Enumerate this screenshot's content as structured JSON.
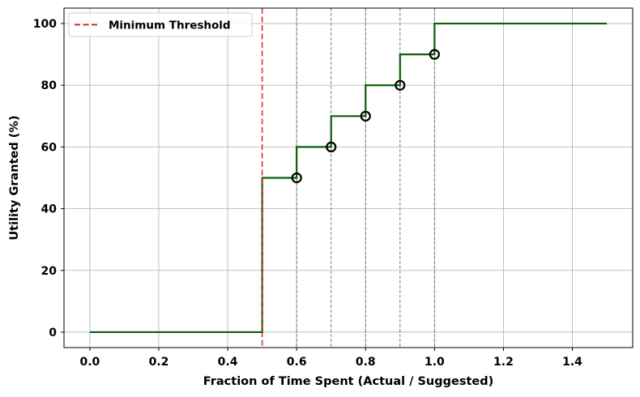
{
  "chart_data": {
    "type": "line",
    "title": "",
    "xlabel": "Fraction of Time Spent (Actual / Suggested)",
    "ylabel": "Utility Granted (%)",
    "xlim": [
      -0.075,
      1.575
    ],
    "ylim": [
      -5,
      105
    ],
    "xticks": [
      0.0,
      0.2,
      0.4,
      0.6,
      0.8,
      1.0,
      1.2,
      1.4
    ],
    "xtick_labels": [
      "0.0",
      "0.2",
      "0.4",
      "0.6",
      "0.8",
      "1.0",
      "1.2",
      "1.4"
    ],
    "yticks": [
      0,
      20,
      40,
      60,
      80,
      100
    ],
    "ytick_labels": [
      "0",
      "20",
      "40",
      "60",
      "80",
      "100"
    ],
    "grid": true,
    "legend_position": "top-left",
    "step_line": {
      "name": "",
      "color": "#0b5e0b",
      "points": [
        [
          0.0,
          0
        ],
        [
          0.5,
          0
        ],
        [
          0.5,
          50
        ],
        [
          0.6,
          50
        ],
        [
          0.6,
          60
        ],
        [
          0.7,
          60
        ],
        [
          0.7,
          70
        ],
        [
          0.8,
          70
        ],
        [
          0.8,
          80
        ],
        [
          0.9,
          80
        ],
        [
          0.9,
          90
        ],
        [
          1.0,
          90
        ],
        [
          1.0,
          100
        ],
        [
          1.5,
          100
        ]
      ]
    },
    "markers": {
      "color": "#000000",
      "points": [
        [
          0.6,
          50
        ],
        [
          0.7,
          60
        ],
        [
          0.8,
          70
        ],
        [
          0.9,
          80
        ],
        [
          1.0,
          90
        ]
      ]
    },
    "step_boundaries": [
      0.6,
      0.7,
      0.8,
      0.9,
      1.0
    ],
    "threshold": {
      "name": "Minimum Threshold",
      "x": 0.5,
      "color": "#d62728",
      "style": "dashed"
    }
  }
}
